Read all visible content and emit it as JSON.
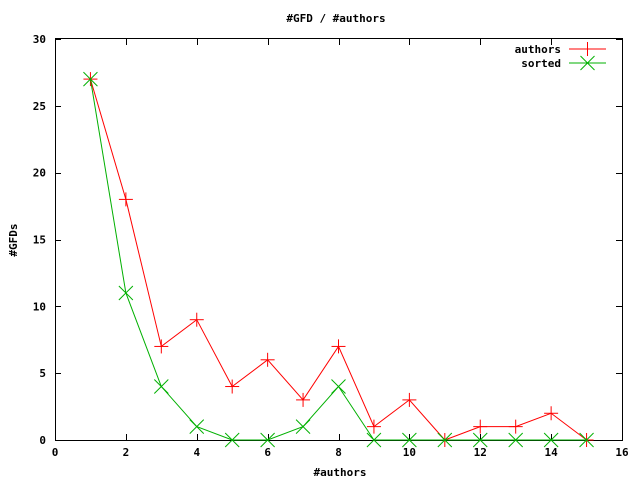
{
  "chart_data": {
    "type": "line",
    "title": "#GFD / #authors",
    "xlabel": "#authors",
    "ylabel": "#GFDs",
    "xlim": [
      0,
      16
    ],
    "ylim": [
      0,
      30
    ],
    "xticks": [
      0,
      2,
      4,
      6,
      8,
      10,
      12,
      14,
      16
    ],
    "yticks": [
      0,
      5,
      10,
      15,
      20,
      25,
      30
    ],
    "grid": false,
    "legend_position": "top-right",
    "series": [
      {
        "name": "authors",
        "color": "#ff0000",
        "marker": "plus",
        "x": [
          1,
          2,
          3,
          4,
          5,
          6,
          7,
          8,
          9,
          10,
          11,
          12,
          13,
          14,
          15
        ],
        "y": [
          27,
          18,
          7,
          9,
          4,
          6,
          3,
          7,
          1,
          3,
          0,
          1,
          1,
          2,
          0
        ]
      },
      {
        "name": "sorted",
        "color": "#00b000",
        "marker": "cross",
        "x": [
          1,
          2,
          3,
          4,
          5,
          6,
          7,
          8,
          9,
          10,
          11,
          12,
          13,
          14,
          15
        ],
        "y": [
          27,
          11,
          4,
          1,
          0,
          0,
          1,
          4,
          0,
          0,
          0,
          0,
          0,
          0,
          0
        ]
      }
    ]
  }
}
